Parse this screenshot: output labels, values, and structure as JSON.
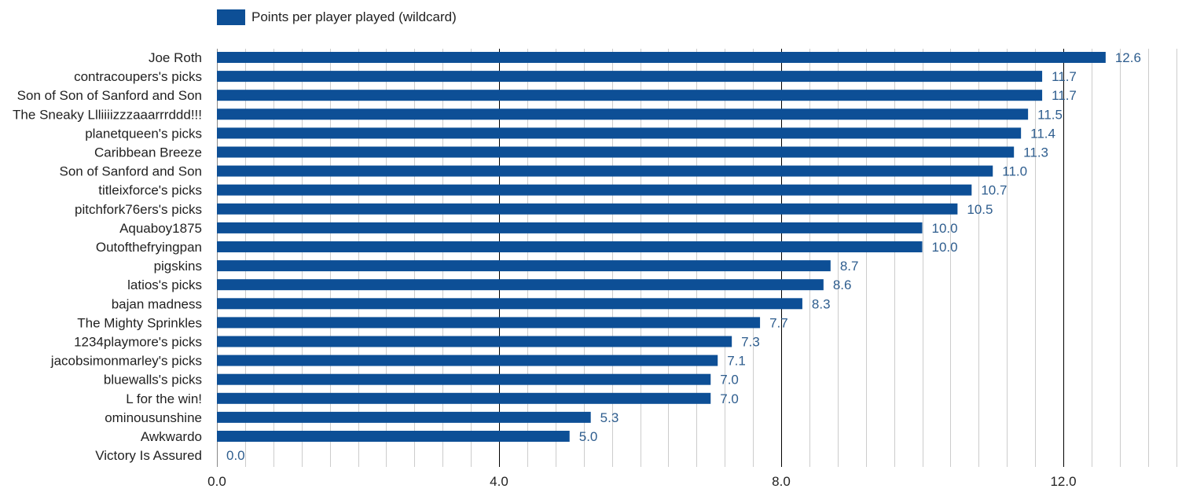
{
  "chart_data": {
    "type": "bar",
    "orientation": "horizontal",
    "series": [
      {
        "name": "Points per player played (wildcard)",
        "color": "#0d4f96",
        "values": [
          12.6,
          11.7,
          11.7,
          11.5,
          11.4,
          11.3,
          11.0,
          10.7,
          10.5,
          10.0,
          10.0,
          8.7,
          8.6,
          8.3,
          7.7,
          7.3,
          7.1,
          7.0,
          7.0,
          5.3,
          5.0,
          0.0
        ]
      }
    ],
    "categories": [
      "Joe Roth",
      "contracoupers's picks",
      "Son of Son of Sanford and Son",
      "The Sneaky Llliiiizzzaaarrrddd!!!",
      "planetqueen's picks",
      "Caribbean Breeze",
      "Son of Sanford and Son",
      "titleixforce's picks",
      "pitchfork76ers's picks",
      "Aquaboy1875",
      "Outofthefryingpan",
      "pigskins",
      "latios's picks",
      "bajan madness",
      "The Mighty Sprinkles",
      "1234playmore's picks",
      "jacobsimonmarley's picks",
      "bluewalls's picks",
      "L for the win!",
      "ominousunshine",
      "Awkwardo",
      "Victory Is Assured"
    ],
    "data_labels": [
      "12.6",
      "11.7",
      "11.7",
      "11.5",
      "11.4",
      "11.3",
      "11.0",
      "10.7",
      "10.5",
      "10.0",
      "10.0",
      "8.7",
      "8.6",
      "8.3",
      "7.7",
      "7.3",
      "7.1",
      "7.0",
      "7.0",
      "5.3",
      "5.0",
      "0.0"
    ],
    "x_ticks": [
      0,
      4,
      8,
      12
    ],
    "x_tick_labels": [
      "0.0",
      "4.0",
      "8.0",
      "12.0"
    ],
    "minor_step": 0.4,
    "xlim": [
      0,
      14
    ],
    "legend_position": "top-left",
    "grid": true,
    "data_label_color": "#2e5d8e",
    "text_color": "#222222",
    "major_grid_color": "#000000",
    "minor_grid_color": "#cccccc"
  }
}
